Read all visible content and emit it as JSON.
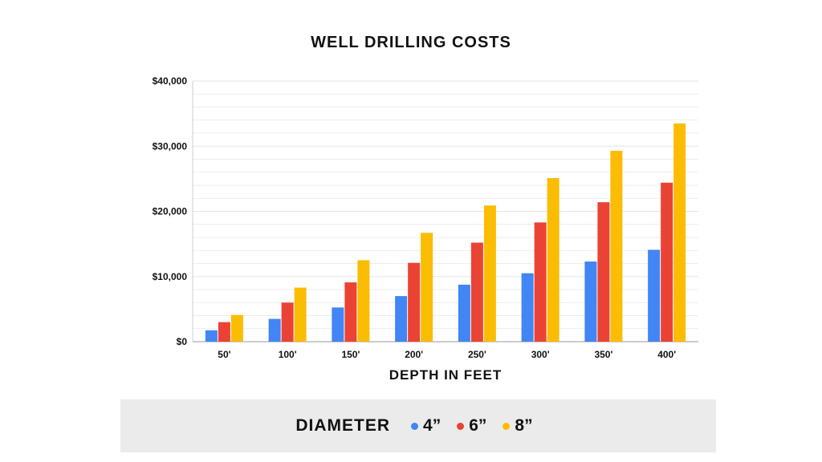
{
  "chart_data": {
    "type": "bar",
    "title": "WELL DRILLING COSTS",
    "xlabel": "DEPTH IN FEET",
    "ylabel": "",
    "categories": [
      "50'",
      "100'",
      "150'",
      "200'",
      "250'",
      "300'",
      "350'",
      "400'"
    ],
    "ylim": [
      0,
      40000
    ],
    "yticks": [
      0,
      10000,
      20000,
      30000,
      40000
    ],
    "ytick_labels": [
      "$0",
      "$10,000",
      "$20,000",
      "$30,000",
      "$40,000"
    ],
    "grid": true,
    "legend_title": "DIAMETER",
    "legend_position": "bottom",
    "series": [
      {
        "name": "4”",
        "color": "#4285f4",
        "values": [
          1750,
          3500,
          5250,
          7000,
          8750,
          10500,
          12300,
          14100
        ]
      },
      {
        "name": "6”",
        "color": "#ea4335",
        "values": [
          3000,
          6000,
          9100,
          12100,
          15200,
          18300,
          21400,
          24400
        ]
      },
      {
        "name": "8”",
        "color": "#fbbc04",
        "values": [
          4100,
          8300,
          12500,
          16700,
          20900,
          25100,
          29300,
          33500
        ]
      }
    ]
  }
}
